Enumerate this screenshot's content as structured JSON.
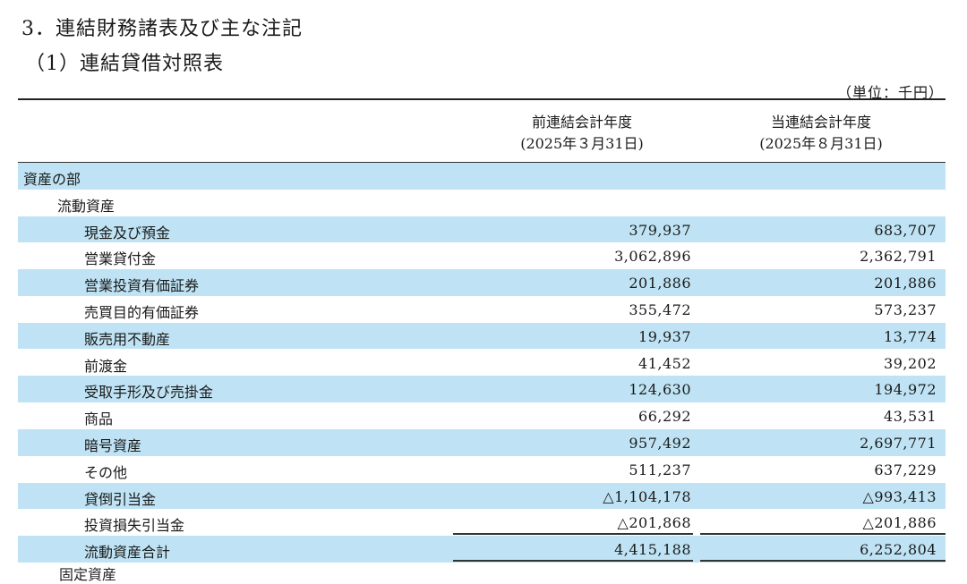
{
  "headings": {
    "section": "3．連結財務諸表及び主な注記",
    "subsection": "（1）連結貸借対照表"
  },
  "unit": "（単位：千円）",
  "columns": {
    "prev_title": "前連結会計年度",
    "prev_date": "(2025年３月31日)",
    "curr_title": "当連結会計年度",
    "curr_date": "(2025年８月31日)"
  },
  "rows": [
    {
      "label": "資産の部",
      "prev": "",
      "curr": ""
    },
    {
      "label": "流動資産",
      "prev": "",
      "curr": ""
    },
    {
      "label": "現金及び預金",
      "prev": "379,937",
      "curr": "683,707"
    },
    {
      "label": "営業貸付金",
      "prev": "3,062,896",
      "curr": "2,362,791"
    },
    {
      "label": "営業投資有価証券",
      "prev": "201,886",
      "curr": "201,886"
    },
    {
      "label": "売買目的有価証券",
      "prev": "355,472",
      "curr": "573,237"
    },
    {
      "label": "販売用不動産",
      "prev": "19,937",
      "curr": "13,774"
    },
    {
      "label": "前渡金",
      "prev": "41,452",
      "curr": "39,202"
    },
    {
      "label": "受取手形及び売掛金",
      "prev": "124,630",
      "curr": "194,972"
    },
    {
      "label": "商品",
      "prev": "66,292",
      "curr": "43,531"
    },
    {
      "label": "暗号資産",
      "prev": "957,492",
      "curr": "2,697,771"
    },
    {
      "label": "その他",
      "prev": "511,237",
      "curr": "637,229"
    },
    {
      "label": "貸倒引当金",
      "prev": "△1,104,178",
      "curr": "△993,413"
    },
    {
      "label": "投資損失引当金",
      "prev": "△201,868",
      "curr": "△201,886"
    },
    {
      "label": "流動資産合計",
      "prev": "4,415,188",
      "curr": "6,252,804"
    }
  ],
  "next_line": "固定資産"
}
